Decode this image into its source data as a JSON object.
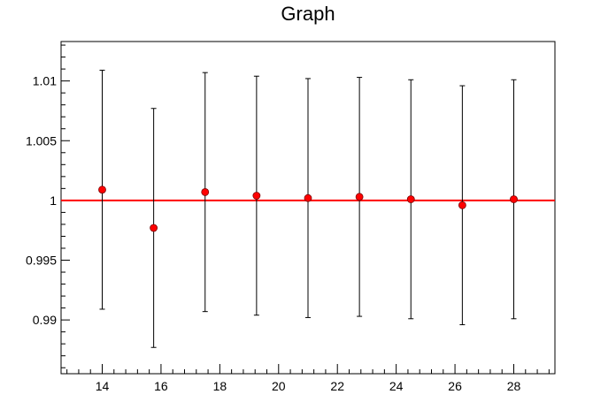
{
  "chart_data": {
    "type": "scatter",
    "title": "Graph",
    "xlabel": "",
    "ylabel": "",
    "xlim": [
      12.6,
      29.4
    ],
    "ylim": [
      0.9855,
      1.0133
    ],
    "x_ticks": [
      14,
      16,
      18,
      20,
      22,
      24,
      26,
      28
    ],
    "y_ticks": [
      0.99,
      0.995,
      1,
      1.005,
      1.01
    ],
    "y_tick_labels": [
      "0.99",
      "0.995",
      "1",
      "1.005",
      "1.01"
    ],
    "series": [
      {
        "x": [
          14.0,
          15.75,
          17.5,
          19.25,
          21.0,
          22.75,
          24.5,
          26.25,
          28.0
        ],
        "y": [
          1.0009,
          0.9977,
          1.0007,
          1.0004,
          1.0002,
          1.0003,
          1.0001,
          0.9996,
          1.0001
        ],
        "y_err": [
          0.01,
          0.01,
          0.01,
          0.01,
          0.01,
          0.01,
          0.01,
          0.01,
          0.01
        ]
      }
    ],
    "reference_line": {
      "y": 1.0,
      "color": "#ff0000"
    },
    "marker_color": "#ff0000",
    "grid": false,
    "legend": "none"
  }
}
